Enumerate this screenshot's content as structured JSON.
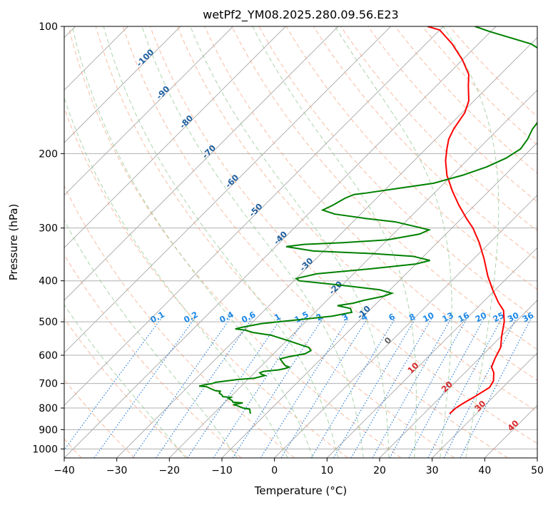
{
  "chart_data": {
    "type": "line",
    "title": "wetPf2_YM08.2025.280.09.56.E23",
    "xlabel": "Temperature (°C)",
    "ylabel": "Pressure (hPa)",
    "xlim": [
      -40,
      50
    ],
    "ylim": [
      1050,
      100
    ],
    "y_scale": "log",
    "grid": true,
    "x_ticks": [
      -40,
      -30,
      -20,
      -10,
      0,
      10,
      20,
      30,
      40,
      50
    ],
    "y_ticks": [
      100,
      200,
      300,
      400,
      500,
      600,
      700,
      800,
      900,
      1000
    ],
    "x_tick_labels": [
      "−40",
      "−30",
      "−20",
      "−10",
      "0",
      "10",
      "20",
      "30",
      "40",
      "50"
    ],
    "y_tick_labels": [
      "100",
      "200",
      "300",
      "400",
      "500",
      "600",
      "700",
      "800",
      "900",
      "1000"
    ],
    "skew_isotherms": [
      -180,
      -170,
      -160,
      -150,
      -140,
      -130,
      -120,
      -110,
      -100,
      -90,
      -80,
      -70,
      -60,
      -50,
      -40,
      -30,
      -20,
      -10,
      0,
      10,
      20,
      30,
      40,
      50
    ],
    "dry_adiabats_c": [
      -60,
      -50,
      -40,
      -30,
      -20,
      -10,
      0,
      10,
      20,
      30,
      40,
      50,
      60,
      70,
      80,
      90,
      100,
      110,
      120,
      130,
      140,
      150,
      160
    ],
    "moist_adiabats_c": [
      -20,
      -10,
      0,
      5,
      10,
      15,
      20,
      25,
      30,
      35
    ],
    "mixing_ratios": [
      "0.1",
      "0.2",
      "0.4",
      "0.6",
      "1",
      "1.5",
      "2",
      "3",
      "4",
      "6",
      "8",
      "10",
      "13",
      "16",
      "20",
      "25",
      "30",
      "36"
    ],
    "series": [
      {
        "color": "#ff0000",
        "points": [
          [
            24.9,
            825
          ],
          [
            25.0,
            800
          ],
          [
            25.5,
            780
          ],
          [
            26.5,
            750
          ],
          [
            27.5,
            715
          ],
          [
            27.0,
            690
          ],
          [
            25.5,
            660
          ],
          [
            24.0,
            640
          ],
          [
            23.0,
            610
          ],
          [
            22.0,
            575
          ],
          [
            20.0,
            540
          ],
          [
            17.8,
            500
          ],
          [
            15.5,
            470
          ],
          [
            13.0,
            450
          ],
          [
            9.5,
            420
          ],
          [
            6.0,
            390
          ],
          [
            2.0,
            355
          ],
          [
            -2.0,
            325
          ],
          [
            -6.0,
            300
          ],
          [
            -9.0,
            285
          ],
          [
            -13.0,
            265
          ],
          [
            -17.0,
            245
          ],
          [
            -21.0,
            225
          ],
          [
            -24.0,
            208
          ],
          [
            -26.0,
            195
          ],
          [
            -27.5,
            185
          ],
          [
            -28.5,
            175
          ],
          [
            -29.5,
            160
          ],
          [
            -31.0,
            150
          ],
          [
            -34.0,
            138
          ],
          [
            -36.0,
            130
          ],
          [
            -40.0,
            120
          ],
          [
            -45.0,
            110
          ],
          [
            -50.0,
            102
          ],
          [
            -53.0,
            100
          ]
        ]
      },
      {
        "color": "#008000",
        "points": [
          [
            -13.0,
            825
          ],
          [
            -14.0,
            805
          ],
          [
            -15.5,
            800
          ],
          [
            -17.0,
            790
          ],
          [
            -18.0,
            785
          ],
          [
            -16.5,
            778
          ],
          [
            -18.5,
            775
          ],
          [
            -19.0,
            768
          ],
          [
            -20.0,
            760
          ],
          [
            -19.8,
            755
          ],
          [
            -21.5,
            752
          ],
          [
            -22.0,
            745
          ],
          [
            -22.8,
            738
          ],
          [
            -23.0,
            730
          ],
          [
            -24.0,
            728
          ],
          [
            -25.0,
            722
          ],
          [
            -26.5,
            712
          ],
          [
            -28.0,
            710
          ],
          [
            -27.2,
            705
          ],
          [
            -26.0,
            700
          ],
          [
            -25.5,
            695
          ],
          [
            -22.0,
            685
          ],
          [
            -19.0,
            680
          ],
          [
            -17.5,
            670
          ],
          [
            -18.5,
            665
          ],
          [
            -19.0,
            660
          ],
          [
            -18.5,
            655
          ],
          [
            -16.0,
            650
          ],
          [
            -15.0,
            645
          ],
          [
            -14.5,
            640
          ],
          [
            -15.5,
            635
          ],
          [
            -16.5,
            625
          ],
          [
            -17.8,
            612
          ],
          [
            -16.5,
            605
          ],
          [
            -14.0,
            595
          ],
          [
            -13.5,
            585
          ],
          [
            -14.5,
            575
          ],
          [
            -17.0,
            565
          ],
          [
            -20.0,
            553
          ],
          [
            -24.0,
            538
          ],
          [
            -28.0,
            530
          ],
          [
            -30.0,
            523
          ],
          [
            -32.0,
            520
          ],
          [
            -31.0,
            515
          ],
          [
            -28.0,
            505
          ],
          [
            -22.0,
            495
          ],
          [
            -16.0,
            485
          ],
          [
            -13.0,
            475
          ],
          [
            -14.0,
            465
          ],
          [
            -17.0,
            458
          ],
          [
            -14.5,
            452
          ],
          [
            -13.0,
            445
          ],
          [
            -10.0,
            435
          ],
          [
            -9.0,
            428
          ],
          [
            -12.0,
            420
          ],
          [
            -20.0,
            410
          ],
          [
            -29.0,
            400
          ],
          [
            -30.0,
            395
          ],
          [
            -27.0,
            385
          ],
          [
            -18.0,
            375
          ],
          [
            -10.0,
            365
          ],
          [
            -8.0,
            358
          ],
          [
            -12.0,
            350
          ],
          [
            -20.0,
            345
          ],
          [
            -32.0,
            340
          ],
          [
            -38.0,
            332
          ],
          [
            -35.0,
            328
          ],
          [
            -28.0,
            325
          ],
          [
            -20.0,
            320
          ],
          [
            -15.0,
            310
          ],
          [
            -14.0,
            303
          ],
          [
            -17.0,
            298
          ],
          [
            -22.0,
            290
          ],
          [
            -28.0,
            285
          ],
          [
            -35.0,
            278
          ],
          [
            -38.0,
            272
          ],
          [
            -37.0,
            265
          ],
          [
            -36.0,
            255
          ],
          [
            -35.0,
            250
          ],
          [
            -33.0,
            248
          ],
          [
            -28.0,
            242
          ],
          [
            -22.0,
            235
          ],
          [
            -18.0,
            225
          ],
          [
            -15.0,
            215
          ],
          [
            -13.0,
            205
          ],
          [
            -12.0,
            195
          ],
          [
            -12.5,
            185
          ],
          [
            -13.5,
            175
          ],
          [
            -14.0,
            165
          ],
          [
            -15.0,
            150
          ],
          [
            -16.0,
            140
          ],
          [
            -18.0,
            130
          ],
          [
            -22.0,
            120
          ],
          [
            -30.0,
            110
          ],
          [
            -40.0,
            103
          ],
          [
            -44.0,
            100
          ]
        ]
      }
    ]
  }
}
